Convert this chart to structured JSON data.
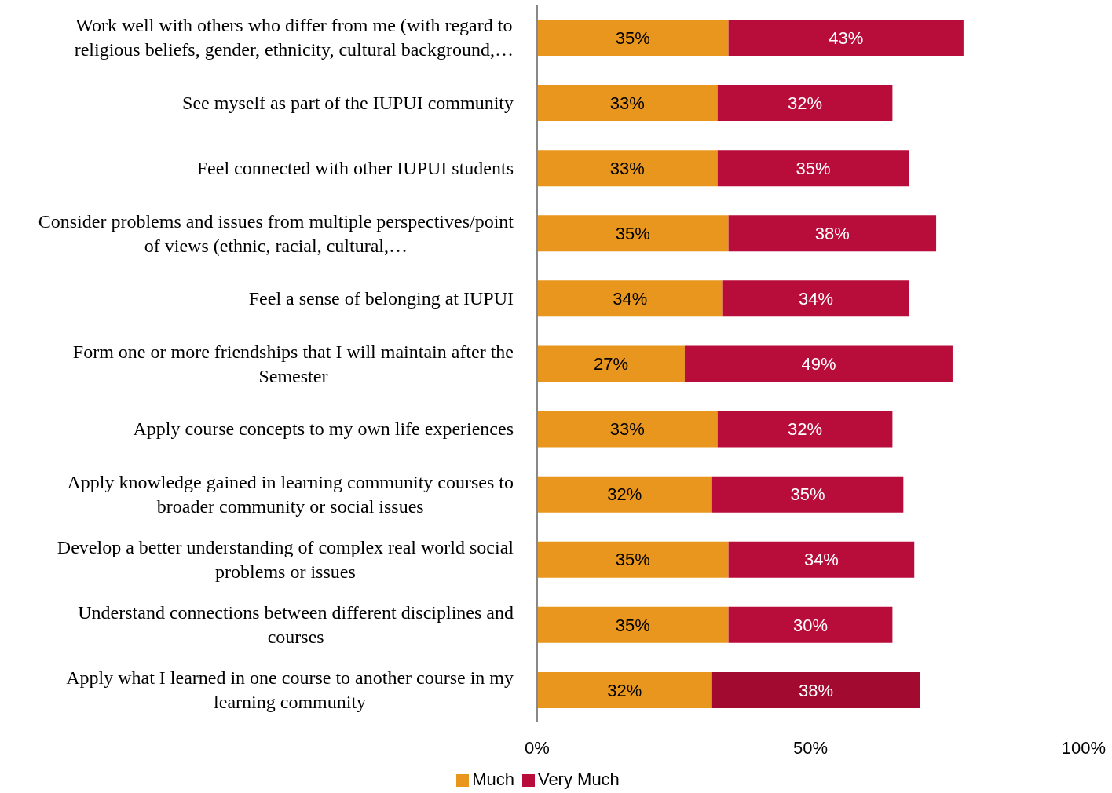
{
  "chart_data": {
    "type": "bar",
    "orientation": "horizontal",
    "stacked": true,
    "categories": [
      "Work well with others who differ from me (with regard to religious beliefs, gender, ethnicity, cultural background,…",
      "See myself as part of the IUPUI community",
      "Feel connected with other IUPUI students",
      "Consider problems and issues from multiple perspectives/point of views (ethnic, racial, cultural,…",
      "Feel a sense of belonging at IUPUI",
      "Form one or more friendships that I will maintain after the Semester",
      "Apply course concepts to my own life experiences",
      "Apply knowledge gained in learning community courses to broader community or social issues",
      "Develop a better understanding of complex real world social problems or issues",
      "Understand connections between different disciplines and courses",
      "Apply what I learned in one course to another course in my learning community"
    ],
    "series": [
      {
        "name": "Much",
        "color": "#e8961e",
        "values": [
          35,
          33,
          33,
          35,
          34,
          27,
          33,
          32,
          35,
          35,
          32
        ],
        "value_labels": [
          "35%",
          "33%",
          "33%",
          "35%",
          "34%",
          "27%",
          "33%",
          "32%",
          "35%",
          "35%",
          "32%"
        ]
      },
      {
        "name": "Very Much",
        "color": "#b80d3a",
        "colors": [
          "#b80d3a",
          "#b80d3a",
          "#b80d3a",
          "#b80d3a",
          "#b80d3a",
          "#b80d3a",
          "#b80d3a",
          "#b80d3a",
          "#b80d3a",
          "#b80d3a",
          "#a30a2f"
        ],
        "values": [
          43,
          32,
          35,
          38,
          34,
          49,
          32,
          35,
          34,
          30,
          38
        ],
        "value_labels": [
          "43%",
          "32%",
          "35%",
          "38%",
          "34%",
          "49%",
          "32%",
          "35%",
          "34%",
          "30%",
          "38%"
        ]
      }
    ],
    "xlim": [
      0,
      100
    ],
    "xticks": [
      {
        "value": 0,
        "label": "0%"
      },
      {
        "value": 50,
        "label": "50%"
      },
      {
        "value": 100,
        "label": "100%"
      }
    ],
    "grid": false,
    "legend": "bottom"
  }
}
